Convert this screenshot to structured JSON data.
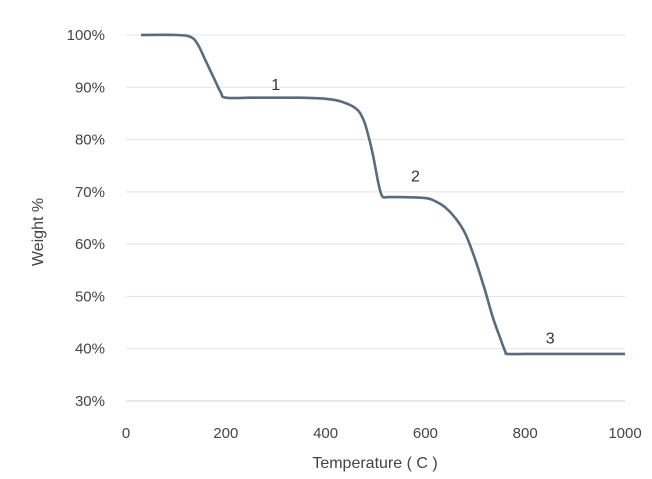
{
  "chart_data": {
    "type": "line",
    "title": "",
    "xlabel": "Temperature ( C )",
    "ylabel": "Weight %",
    "xlim": [
      0,
      1000
    ],
    "ylim": [
      30,
      100
    ],
    "x_ticks": [
      0,
      200,
      400,
      600,
      800,
      1000
    ],
    "y_ticks": [
      30,
      40,
      50,
      60,
      70,
      80,
      90,
      100
    ],
    "y_tick_labels": [
      "30%",
      "40%",
      "50%",
      "60%",
      "70%",
      "80%",
      "90%",
      "100%"
    ],
    "grid": "horizontal",
    "legend": "none",
    "line_color": "#5b6b7f",
    "series": [
      {
        "x": [
          30,
          100,
          130,
          145,
          160,
          175,
          190,
          200,
          250,
          300,
          350,
          400,
          430,
          460,
          475,
          485,
          495,
          505,
          510,
          515,
          525,
          550,
          600,
          620,
          640,
          660,
          680,
          700,
          720,
          735,
          750,
          760,
          765,
          800,
          850,
          900,
          950,
          1000
        ],
        "y": [
          100,
          100,
          99.6,
          98,
          95,
          92,
          89,
          88,
          88,
          88,
          88,
          87.8,
          87.3,
          86,
          84,
          81,
          77,
          72,
          70,
          69,
          69,
          69,
          68.8,
          68.2,
          67,
          65,
          62,
          57,
          51,
          46,
          42,
          39.5,
          39,
          39,
          39,
          39,
          39,
          39
        ]
      }
    ],
    "annotations": [
      {
        "text": "1",
        "x": 300,
        "y": 89.5
      },
      {
        "text": "2",
        "x": 580,
        "y": 72
      },
      {
        "text": "3",
        "x": 850,
        "y": 41
      }
    ]
  }
}
